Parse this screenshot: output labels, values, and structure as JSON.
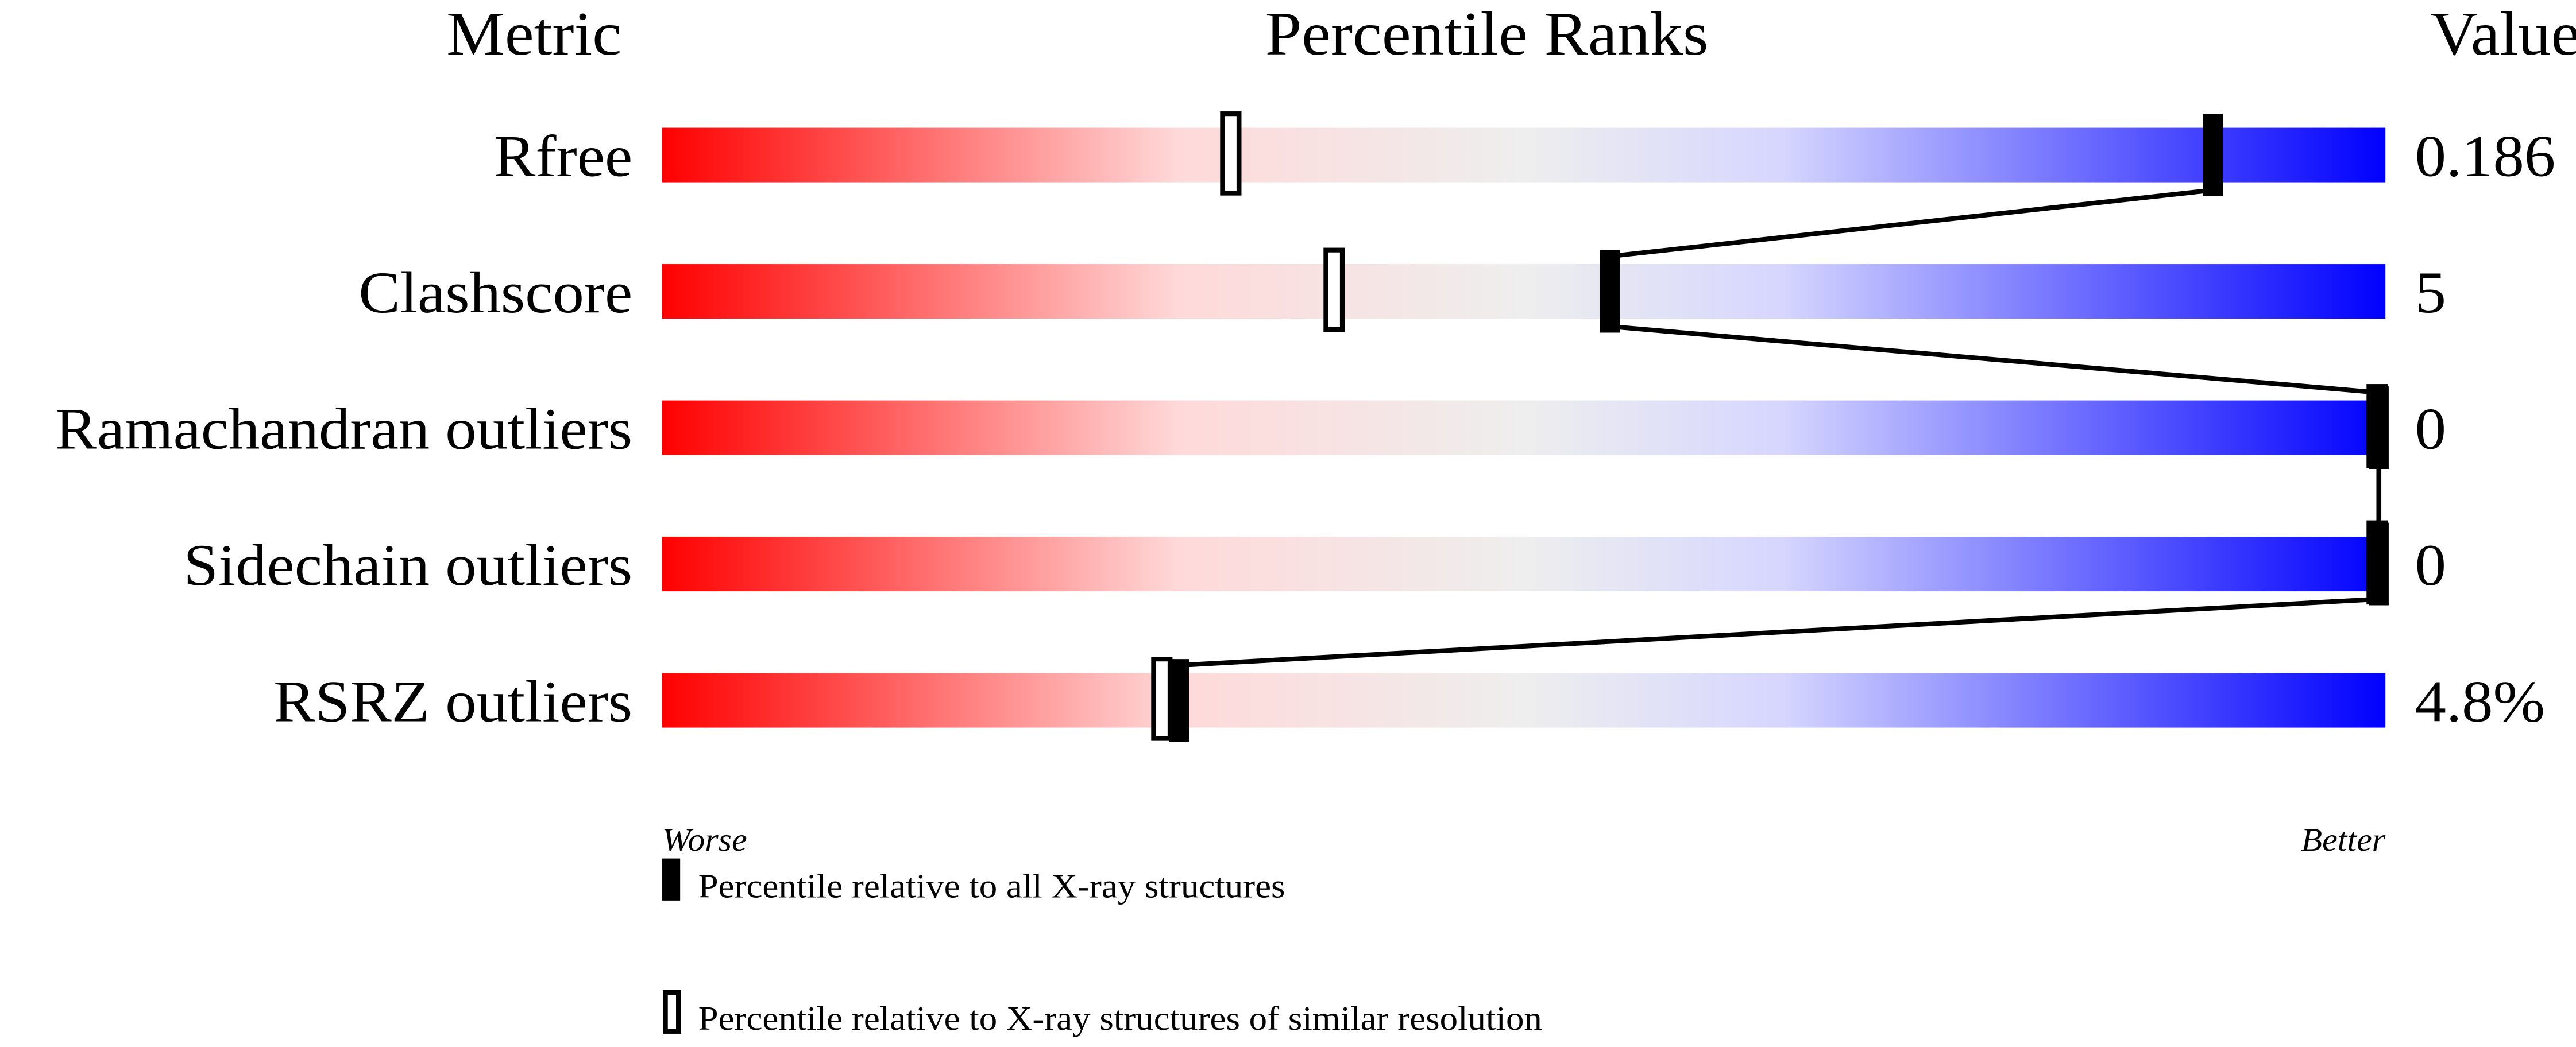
{
  "chart_data": {
    "type": "percentile-bar",
    "headers": {
      "metric": "Metric",
      "ranks": "Percentile Ranks",
      "value": "Value"
    },
    "axis": {
      "worse": "Worse",
      "better": "Better",
      "range": [
        0,
        100
      ]
    },
    "gradient_colors": [
      "#ff0000",
      "#ffd9d9",
      "#eeeeee",
      "#d6d6ff",
      "#0000ff"
    ],
    "rows": [
      {
        "metric": "Rfree",
        "value": "0.186",
        "percentile_all": 90,
        "percentile_similar": 33
      },
      {
        "metric": "Clashscore",
        "value": "5",
        "percentile_all": 55,
        "percentile_similar": 39
      },
      {
        "metric": "Ramachandran outliers",
        "value": "0",
        "percentile_all": 100,
        "percentile_similar": 100
      },
      {
        "metric": "Sidechain outliers",
        "value": "0",
        "percentile_all": 100,
        "percentile_similar": 100
      },
      {
        "metric": "RSRZ outliers",
        "value": "4.8%",
        "percentile_all": 30,
        "percentile_similar": 29
      }
    ],
    "legend": [
      {
        "marker": "filled",
        "label": "Percentile relative to all X-ray structures"
      },
      {
        "marker": "open",
        "label": "Percentile relative to X-ray structures of similar resolution"
      }
    ]
  }
}
